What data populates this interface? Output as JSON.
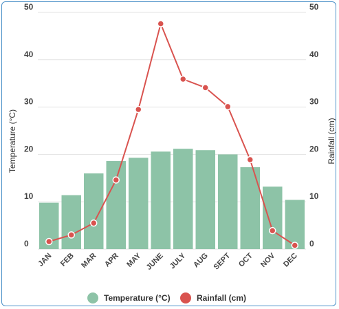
{
  "chart_data": {
    "type": "bar+line",
    "categories": [
      "JAN",
      "FEB",
      "MAR",
      "APR",
      "MAY",
      "JUNE",
      "JULY",
      "AUG",
      "SEPT",
      "OCT",
      "NOV",
      "DEC"
    ],
    "series": [
      {
        "name": "Temperature (°C)",
        "type": "bar",
        "axis": "left",
        "color": "#8dc3a7",
        "values": [
          9.8,
          11.4,
          16.0,
          18.6,
          19.3,
          20.6,
          21.2,
          20.9,
          20.0,
          17.3,
          13.2,
          10.4
        ]
      },
      {
        "name": "Rainfall (cm)",
        "type": "line",
        "axis": "right",
        "color": "#d9534f",
        "values": [
          1.6,
          3.0,
          5.5,
          14.6,
          29.5,
          47.6,
          35.9,
          34.1,
          30.1,
          18.9,
          3.9,
          0.8
        ]
      }
    ],
    "ylabel_left": "Temperature (°C)",
    "ylabel_right": "Rainfall (cm)",
    "ylim_left": [
      0,
      50
    ],
    "ylim_right": [
      0,
      50
    ],
    "yticks": [
      "0",
      "10",
      "20",
      "30",
      "40",
      "50"
    ],
    "grid": true,
    "legend_position": "bottom"
  }
}
